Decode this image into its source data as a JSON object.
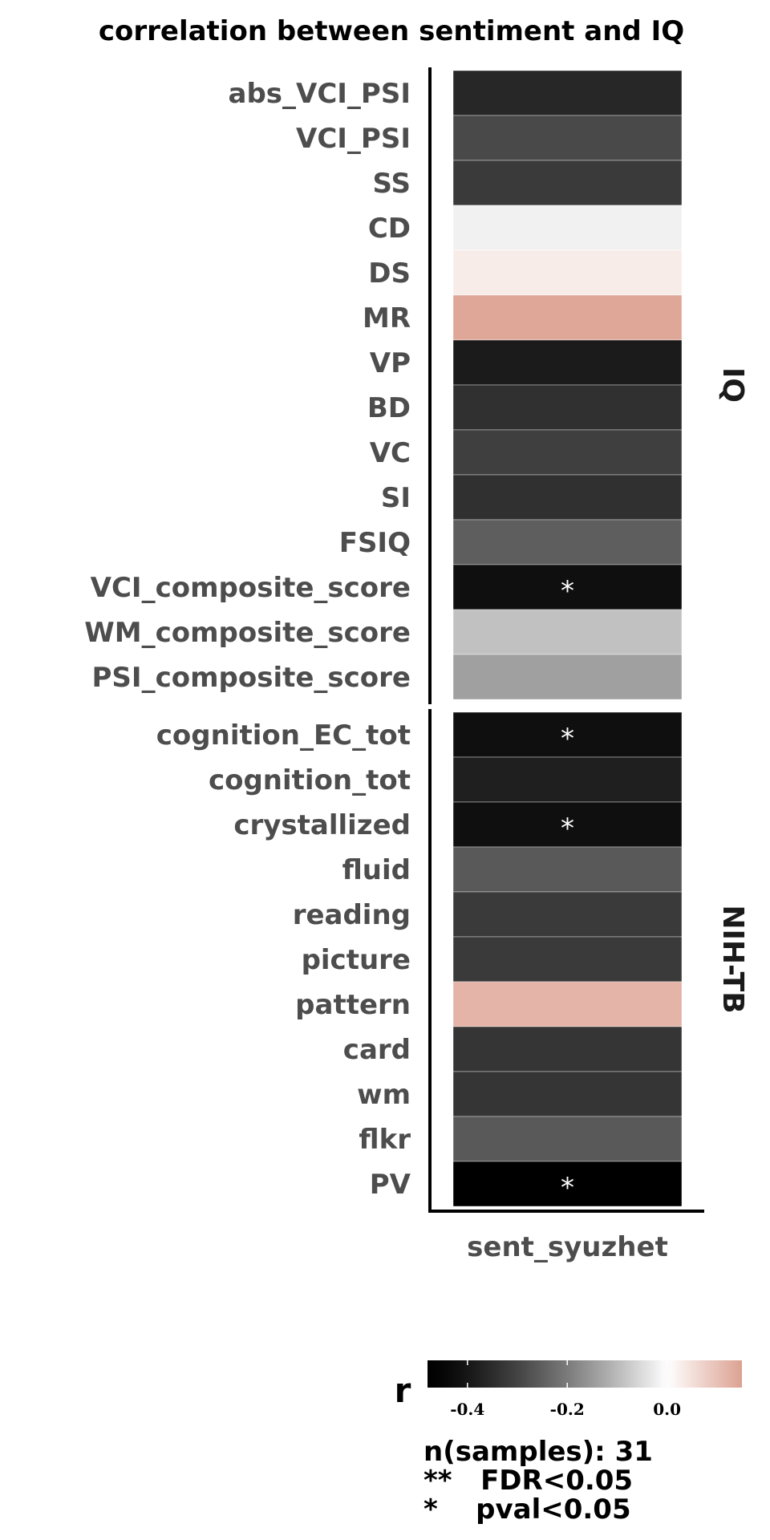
{
  "chart_data": {
    "type": "heatmap",
    "title": "correlation between sentiment and IQ",
    "columns": [
      "sent_syuzhet"
    ],
    "panels": [
      {
        "strip_label": "IQ",
        "rows": [
          {
            "label": "abs_VCI_PSI",
            "r": -0.36,
            "sig": ""
          },
          {
            "label": "VCI_PSI",
            "r": -0.29,
            "sig": ""
          },
          {
            "label": "SS",
            "r": -0.32,
            "sig": ""
          },
          {
            "label": "CD",
            "r": -0.02,
            "sig": ""
          },
          {
            "label": "DS",
            "r": 0.03,
            "sig": ""
          },
          {
            "label": "MR",
            "r": 0.14,
            "sig": ""
          },
          {
            "label": "VP",
            "r": -0.39,
            "sig": ""
          },
          {
            "label": "BD",
            "r": -0.34,
            "sig": ""
          },
          {
            "label": "VC",
            "r": -0.31,
            "sig": ""
          },
          {
            "label": "SI",
            "r": -0.34,
            "sig": ""
          },
          {
            "label": "FSIQ",
            "r": -0.25,
            "sig": ""
          },
          {
            "label": "VCI_composite_score",
            "r": -0.42,
            "sig": "*"
          },
          {
            "label": "WM_composite_score",
            "r": -0.09,
            "sig": ""
          },
          {
            "label": "PSI_composite_score",
            "r": -0.14,
            "sig": ""
          }
        ]
      },
      {
        "strip_label": "NIH-TB",
        "rows": [
          {
            "label": "cognition_EC_tot",
            "r": -0.42,
            "sig": "*"
          },
          {
            "label": "cognition_tot",
            "r": -0.38,
            "sig": ""
          },
          {
            "label": "crystallized",
            "r": -0.42,
            "sig": "*"
          },
          {
            "label": "fluid",
            "r": -0.26,
            "sig": ""
          },
          {
            "label": "reading",
            "r": -0.32,
            "sig": ""
          },
          {
            "label": "picture",
            "r": -0.32,
            "sig": ""
          },
          {
            "label": "pattern",
            "r": 0.12,
            "sig": ""
          },
          {
            "label": "card",
            "r": -0.33,
            "sig": ""
          },
          {
            "label": "wm",
            "r": -0.33,
            "sig": ""
          },
          {
            "label": "flkr",
            "r": -0.26,
            "sig": ""
          },
          {
            "label": "PV",
            "r": -0.48,
            "sig": "*"
          }
        ]
      }
    ],
    "colorbar": {
      "title": "r",
      "range": [
        -0.48,
        0.15
      ],
      "ticks": [
        -0.4,
        -0.2,
        0.0
      ],
      "tick_labels": [
        "-0.4",
        "-0.2",
        "0.0"
      ],
      "low_color": "#000000",
      "mid_color": "#ffffff",
      "high_color": "#dca191"
    },
    "legend_lines": [
      "n(samples): 31",
      "**   FDR<0.05",
      "*    pval<0.05"
    ]
  }
}
